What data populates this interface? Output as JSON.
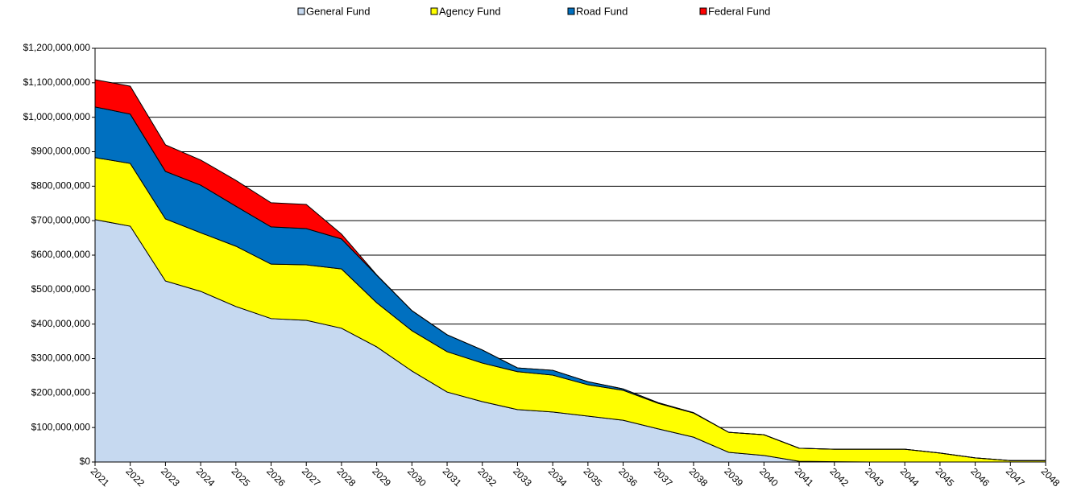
{
  "chart_data": {
    "type": "stacked-area",
    "categories": [
      "2021",
      "2022",
      "2023",
      "2024",
      "2025",
      "2026",
      "2027",
      "2028",
      "2029",
      "2030",
      "2031",
      "2032",
      "2033",
      "2034",
      "2035",
      "2036",
      "2037",
      "2038",
      "2039",
      "2040",
      "2041",
      "2042",
      "2043",
      "2044",
      "2045",
      "2046",
      "2047",
      "2048"
    ],
    "series": [
      {
        "name": "General Fund",
        "color": "#c6d9f0",
        "values": [
          703000000,
          684000000,
          525000000,
          495000000,
          451000000,
          416000000,
          411000000,
          388000000,
          334000000,
          264000000,
          203000000,
          175000000,
          152000000,
          145000000,
          133000000,
          121000000,
          96000000,
          72000000,
          28000000,
          19000000,
          2000000,
          1000000,
          0,
          0,
          0,
          0,
          0,
          0
        ]
      },
      {
        "name": "Agency Fund",
        "color": "#ffff00",
        "values": [
          180000000,
          182000000,
          180000000,
          170000000,
          175000000,
          158000000,
          161000000,
          172000000,
          128000000,
          117000000,
          117000000,
          112000000,
          110000000,
          107000000,
          91000000,
          87000000,
          74000000,
          70000000,
          58000000,
          60000000,
          38000000,
          36000000,
          37000000,
          37000000,
          26000000,
          12000000,
          4000000,
          4000000
        ]
      },
      {
        "name": "Road Fund",
        "color": "#0070c0",
        "values": [
          147000000,
          143000000,
          138000000,
          138000000,
          116000000,
          108000000,
          105000000,
          87000000,
          80000000,
          58000000,
          49000000,
          38000000,
          11000000,
          14000000,
          9000000,
          4000000,
          2000000,
          1000000,
          0,
          0,
          0,
          0,
          0,
          0,
          0,
          0,
          0,
          0
        ]
      },
      {
        "name": "Federal Fund",
        "color": "#ff0000",
        "values": [
          79000000,
          81000000,
          77000000,
          73000000,
          75000000,
          70000000,
          70000000,
          14000000,
          1000000,
          0,
          0,
          0,
          0,
          0,
          0,
          0,
          0,
          0,
          0,
          0,
          0,
          0,
          0,
          0,
          0,
          0,
          0,
          0
        ]
      }
    ],
    "ylim": [
      0,
      1200000000
    ],
    "yticks": [
      {
        "value": 0,
        "label": "$0"
      },
      {
        "value": 100000000,
        "label": "$100,000,000"
      },
      {
        "value": 200000000,
        "label": "$200,000,000"
      },
      {
        "value": 300000000,
        "label": "$300,000,000"
      },
      {
        "value": 400000000,
        "label": "$400,000,000"
      },
      {
        "value": 500000000,
        "label": "$500,000,000"
      },
      {
        "value": 600000000,
        "label": "$600,000,000"
      },
      {
        "value": 700000000,
        "label": "$700,000,000"
      },
      {
        "value": 800000000,
        "label": "$800,000,000"
      },
      {
        "value": 900000000,
        "label": "$900,000,000"
      },
      {
        "value": 1000000000,
        "label": "$1,000,000,000"
      },
      {
        "value": 1100000000,
        "label": "$1,100,000,000"
      },
      {
        "value": 1200000000,
        "label": "$1,200,000,000"
      }
    ],
    "grid": true
  }
}
